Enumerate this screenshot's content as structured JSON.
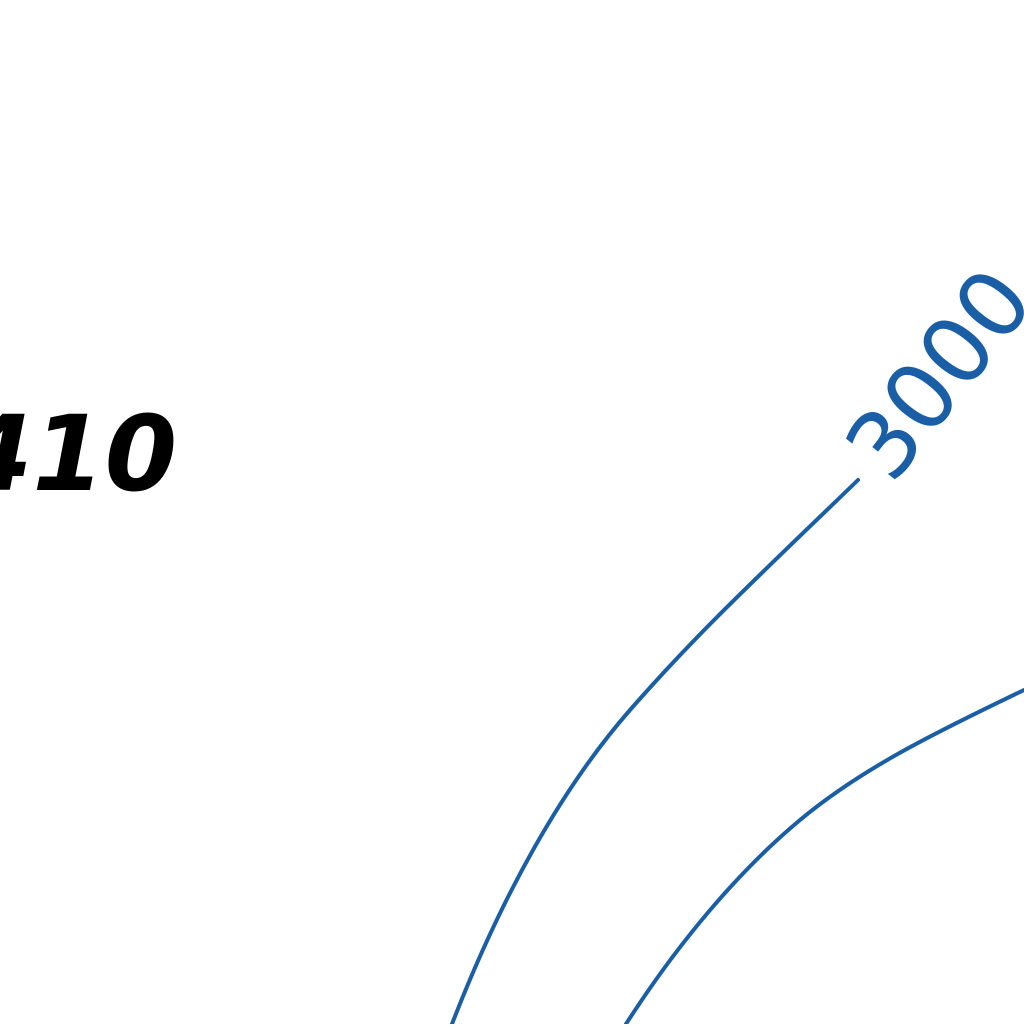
{
  "map": {
    "contour_color": "#1a5ea6",
    "spot_label_color": "#000000",
    "contours": [
      {
        "label": "3000",
        "elevation": 3000
      },
      {
        "label": "",
        "elevation": null
      }
    ],
    "spot_elevation": {
      "label": "410"
    }
  }
}
